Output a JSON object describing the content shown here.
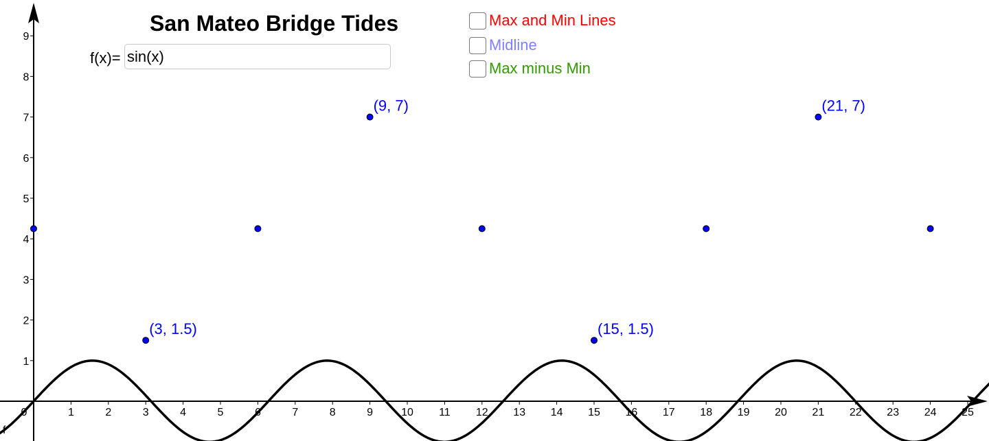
{
  "title": "San Mateo Bridge Tides",
  "input": {
    "label": "f(x)=",
    "value": "sin(x)"
  },
  "checkboxes": [
    {
      "label": "Max and Min Lines",
      "color": "#ff0000",
      "checked": false
    },
    {
      "label": "Midline",
      "color": "#7f7fff",
      "checked": false
    },
    {
      "label": "Max minus Min",
      "color": "#339900",
      "checked": false
    }
  ],
  "colors": {
    "points": "#0000ff",
    "point_labels": "#0000ff",
    "curve": "#000000",
    "axes": "#000000"
  },
  "chart_data": {
    "type": "scatter",
    "xlim": [
      0,
      25.5
    ],
    "ylim": [
      -1,
      9.5
    ],
    "x_ticks": [
      0,
      1,
      2,
      3,
      4,
      5,
      6,
      7,
      8,
      9,
      10,
      11,
      12,
      13,
      14,
      15,
      16,
      17,
      18,
      19,
      20,
      21,
      22,
      23,
      24,
      25
    ],
    "y_ticks": [
      1,
      2,
      3,
      4,
      5,
      6,
      7,
      8,
      9
    ],
    "grid": false,
    "points": [
      {
        "x": 0,
        "y": 4.25,
        "label": ""
      },
      {
        "x": 3,
        "y": 1.5,
        "label": "(3, 1.5)"
      },
      {
        "x": 6,
        "y": 4.25,
        "label": ""
      },
      {
        "x": 9,
        "y": 7,
        "label": "(9, 7)"
      },
      {
        "x": 12,
        "y": 4.25,
        "label": ""
      },
      {
        "x": 15,
        "y": 1.5,
        "label": "(15, 1.5)"
      },
      {
        "x": 18,
        "y": 4.25,
        "label": ""
      },
      {
        "x": 21,
        "y": 7,
        "label": "(21, 7)"
      },
      {
        "x": 24,
        "y": 4.25,
        "label": ""
      }
    ],
    "function": {
      "name": "f",
      "expression": "sin(x)"
    }
  }
}
